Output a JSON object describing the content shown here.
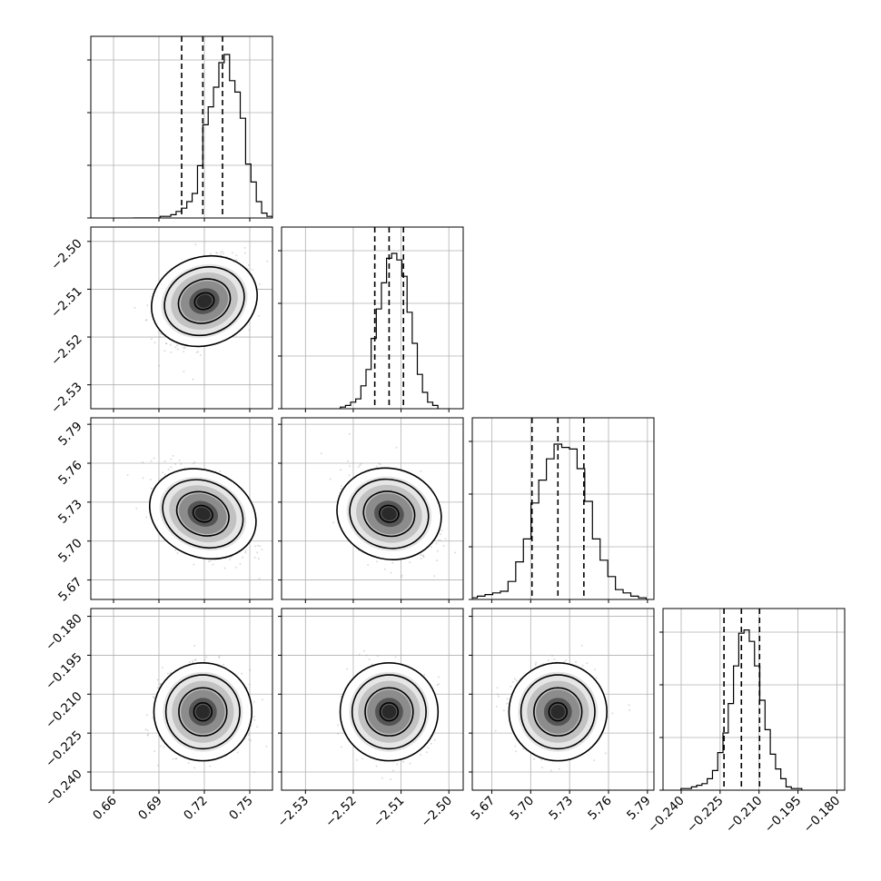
{
  "chart_data": {
    "type": "corner",
    "title": "",
    "params": [
      {
        "ylim": [
          0.645,
          0.765
        ],
        "xticks": [
          "0.66",
          "0.69",
          "0.72",
          "0.75"
        ],
        "xtick_values": [
          0.66,
          0.69,
          0.72,
          0.75
        ]
      },
      {
        "ylim": [
          -2.535,
          -2.497
        ],
        "xticks": [
          "−2.53",
          "−2.52",
          "−2.51",
          "−2.50"
        ],
        "xtick_values": [
          -2.53,
          -2.52,
          -2.51,
          -2.5
        ]
      },
      {
        "ylim": [
          5.655,
          5.795
        ],
        "xticks": [
          "5.67",
          "5.70",
          "5.73",
          "5.76",
          "5.79"
        ],
        "xtick_values": [
          5.67,
          5.7,
          5.73,
          5.76,
          5.79
        ]
      },
      {
        "ylim": [
          -0.247,
          -0.177
        ],
        "xticks": [
          "−0.240",
          "−0.225",
          "−0.210",
          "−0.195",
          "−0.180"
        ],
        "xtick_values": [
          -0.24,
          -0.225,
          -0.21,
          -0.195,
          -0.18
        ]
      }
    ],
    "marginal_quantiles": [
      [
        0.705,
        0.719,
        0.732
      ],
      [
        -2.5155,
        -2.5125,
        -2.5095
      ],
      [
        5.701,
        5.721,
        5.741
      ],
      [
        -0.2235,
        -0.2168,
        -0.2098
      ]
    ],
    "marginal_histograms": [
      [
        0,
        0,
        0,
        0,
        0,
        0.01,
        0.01,
        0.02,
        0.04,
        0.06,
        0.1,
        0.15,
        0.32,
        0.57,
        0.68,
        0.8,
        0.95,
        1.0,
        0.84,
        0.77,
        0.61,
        0.33,
        0.22,
        0.1,
        0.03,
        0.01
      ],
      [
        0.01,
        0.02,
        0.04,
        0.06,
        0.14,
        0.24,
        0.43,
        0.61,
        0.77,
        0.92,
        0.95,
        0.91,
        0.81,
        0.59,
        0.4,
        0.21,
        0.1,
        0.04,
        0.02
      ],
      [
        0.01,
        0.02,
        0.03,
        0.04,
        0.05,
        0.11,
        0.23,
        0.37,
        0.59,
        0.73,
        0.86,
        0.95,
        0.93,
        0.92,
        0.8,
        0.6,
        0.37,
        0.24,
        0.14,
        0.06,
        0.04,
        0.02,
        0.01
      ],
      [
        0.01,
        0.01,
        0.02,
        0.03,
        0.04,
        0.07,
        0.12,
        0.23,
        0.35,
        0.53,
        0.76,
        0.96,
        0.98,
        0.91,
        0.76,
        0.55,
        0.37,
        0.22,
        0.13,
        0.07,
        0.02,
        0.01,
        0.01
      ]
    ],
    "pair_summary": [
      {
        "row": 1,
        "col": 0,
        "center": [
          0.72,
          -2.5125
        ],
        "rho": 0.4
      },
      {
        "row": 2,
        "col": 0,
        "center": [
          0.719,
          5.721
        ],
        "rho": -0.48
      },
      {
        "row": 2,
        "col": 1,
        "center": [
          -2.5125,
          5.721
        ],
        "rho": -0.3
      },
      {
        "row": 3,
        "col": 0,
        "center": [
          0.719,
          -0.2168
        ],
        "rho": 0.0
      },
      {
        "row": 3,
        "col": 1,
        "center": [
          -2.5125,
          -0.2168
        ],
        "rho": 0.0
      },
      {
        "row": 3,
        "col": 2,
        "center": [
          5.721,
          -0.2168
        ],
        "rho": 0.0
      }
    ],
    "ytick_labels": {
      "row1": [
        "−2.50",
        "−2.51",
        "−2.52",
        "−2.53"
      ],
      "row2": [
        "5.79",
        "5.76",
        "5.73",
        "5.70",
        "5.67"
      ],
      "row3": [
        "−0.180",
        "−0.195",
        "−0.210",
        "−0.225",
        "−0.240"
      ]
    },
    "grid": true,
    "legend": "none"
  }
}
